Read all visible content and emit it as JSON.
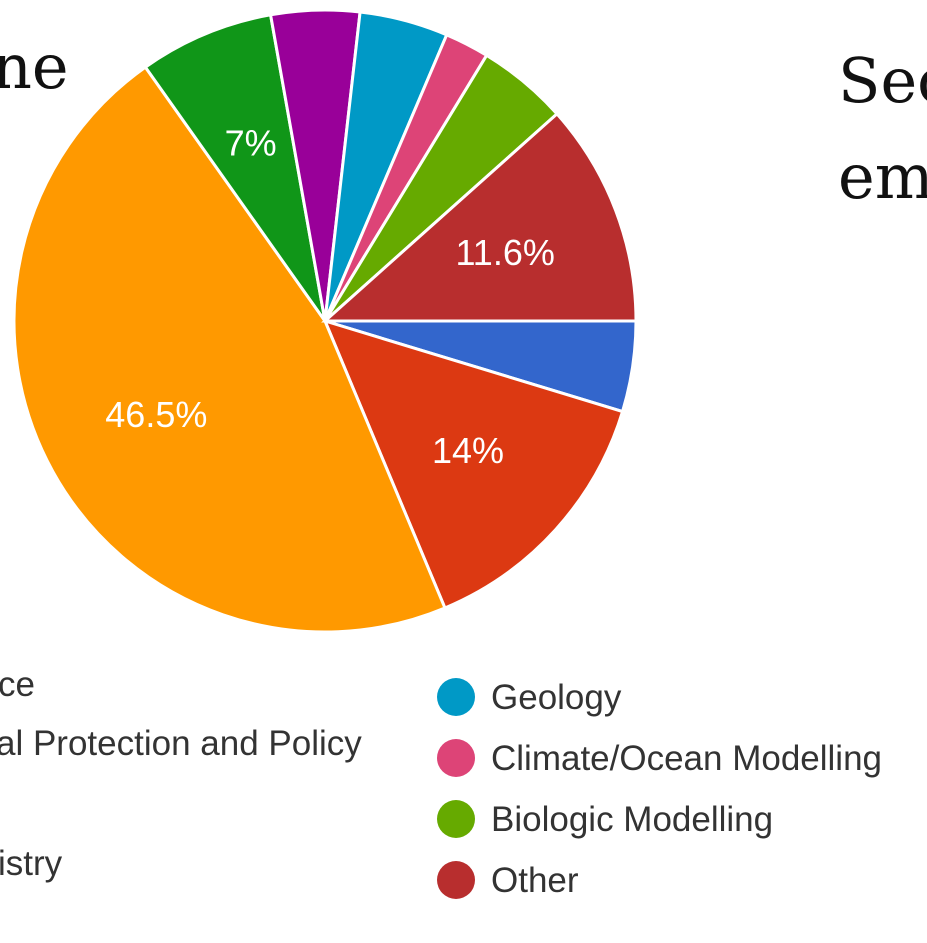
{
  "slide": {
    "title_left": "ne",
    "title_right_line1": "Sec",
    "title_right_line2": "em"
  },
  "chart_data": {
    "type": "pie",
    "slices": [
      {
        "label": "",
        "value": 4.7,
        "color": "#3366cc",
        "shown_label": ""
      },
      {
        "label": "",
        "value": 14.0,
        "color": "#dc3912",
        "shown_label": "14%"
      },
      {
        "label": "",
        "value": 46.5,
        "color": "#ff9900",
        "shown_label": "46.5%"
      },
      {
        "label": "",
        "value": 7.0,
        "color": "#109618",
        "shown_label": "7%"
      },
      {
        "label": "",
        "value": 4.6,
        "color": "#990099",
        "shown_label": ""
      },
      {
        "label": "Geology",
        "value": 4.6,
        "color": "#0099c6",
        "shown_label": ""
      },
      {
        "label": "Climate/Ocean Modelling",
        "value": 2.3,
        "color": "#dd4477",
        "shown_label": ""
      },
      {
        "label": "Biologic Modelling",
        "value": 4.7,
        "color": "#66aa00",
        "shown_label": ""
      },
      {
        "label": "Other",
        "value": 11.6,
        "color": "#b82e2e",
        "shown_label": "11.6%"
      }
    ],
    "legend_left": [
      {
        "text": "ce"
      },
      {
        "text": "al Protection and Policy"
      },
      {
        "text": "istry"
      }
    ],
    "legend_right": [
      {
        "text": "Geology",
        "color": "#0099c6"
      },
      {
        "text": "Climate/Ocean Modelling",
        "color": "#dd4477"
      },
      {
        "text": "Biologic Modelling",
        "color": "#66aa00"
      },
      {
        "text": "Other",
        "color": "#b82e2e"
      }
    ]
  }
}
